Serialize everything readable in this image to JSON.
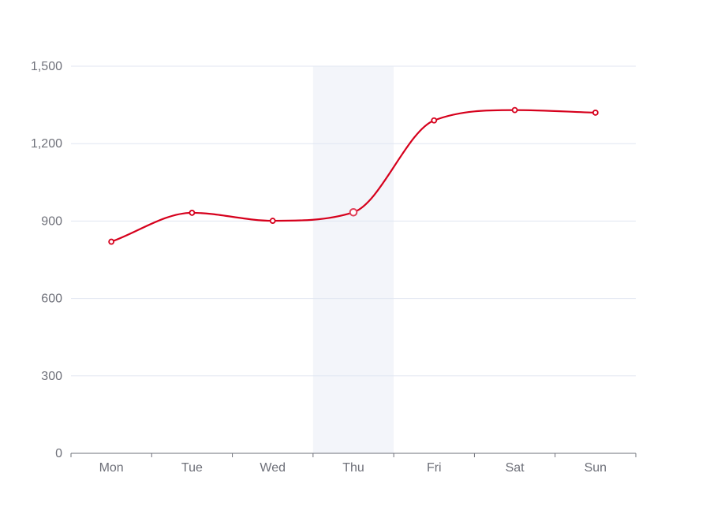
{
  "chart_data": {
    "type": "line",
    "smooth": true,
    "categories": [
      "Mon",
      "Tue",
      "Wed",
      "Thu",
      "Fri",
      "Sat",
      "Sun"
    ],
    "series": [
      {
        "values": [
          820,
          932,
          901,
          934,
          1290,
          1330,
          1320
        ]
      }
    ],
    "ylim": [
      0,
      1500
    ],
    "yticks": [
      0,
      300,
      600,
      900,
      1200,
      1500
    ],
    "ytick_labels": [
      "0",
      "300",
      "600",
      "900",
      "1,200",
      "1,500"
    ],
    "grid": true,
    "highlighted_category": "Thu",
    "colors": {
      "line": "#d6001c",
      "highlight_line": "#e0405a",
      "highlight_band": "#f3f5fa",
      "grid": "#e0e6f1",
      "axis": "#6e7079",
      "label": "#6e7079"
    }
  }
}
